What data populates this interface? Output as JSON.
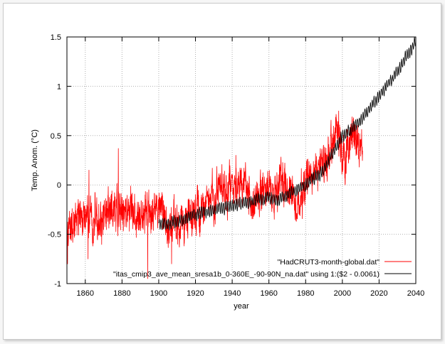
{
  "chart_data": {
    "type": "line",
    "title": "",
    "xlabel": "year",
    "ylabel": "Temp. Anom. (°C)",
    "xlim": [
      1850,
      2040
    ],
    "ylim": [
      -1,
      1.5
    ],
    "x_ticks": [
      1860,
      1880,
      1900,
      1920,
      1940,
      1960,
      1980,
      2000,
      2020,
      2040
    ],
    "y_ticks": [
      -1,
      -0.5,
      0,
      0.5,
      1,
      1.5
    ],
    "x_tick_labels": [
      "1860",
      "1880",
      "1900",
      "1920",
      "1940",
      "1960",
      "1980",
      "2000",
      "2020",
      "2040"
    ],
    "y_tick_labels": [
      "-1",
      "-0.5",
      "0",
      "0.5",
      "1",
      "1.5"
    ],
    "grid": true,
    "legend_position": "bottom-right",
    "series": [
      {
        "name": "\"HadCRUT3-month-global.dat\"",
        "color": "#ff0000",
        "resolution": "monthly",
        "x_range": [
          1850,
          2011
        ],
        "trend": {
          "x": [
            1850,
            1860,
            1870,
            1880,
            1890,
            1900,
            1905,
            1910,
            1920,
            1930,
            1940,
            1945,
            1950,
            1960,
            1970,
            1976,
            1980,
            1990,
            1998,
            2000,
            2005,
            2010
          ],
          "y": [
            -0.35,
            -0.35,
            -0.3,
            -0.25,
            -0.3,
            -0.22,
            -0.38,
            -0.42,
            -0.28,
            -0.14,
            0.03,
            0.0,
            -0.15,
            -0.05,
            -0.05,
            -0.2,
            0.05,
            0.2,
            0.52,
            0.25,
            0.45,
            0.4
          ]
        },
        "noise_amplitude": 0.28,
        "extremes": [
          {
            "x": 1850.3,
            "y": -0.8
          },
          {
            "x": 1861.5,
            "y": -0.75
          },
          {
            "x": 1862,
            "y": 0.15
          },
          {
            "x": 1878,
            "y": 0.37
          },
          {
            "x": 1894,
            "y": -0.95
          },
          {
            "x": 1907,
            "y": -0.8
          },
          {
            "x": 1942,
            "y": 0.3
          },
          {
            "x": 1998,
            "y": 0.75
          }
        ]
      },
      {
        "name": "\"itas_cmip3_ave_mean_sresa1b_0-360E_-90-90N_na.dat\" using 1:($2 - 0.0061)",
        "color": "#000000",
        "resolution": "monthly",
        "x_range": [
          1900,
          2040
        ],
        "trend": {
          "x": [
            1900,
            1910,
            1920,
            1930,
            1940,
            1945,
            1950,
            1960,
            1965,
            1970,
            1980,
            1990,
            2000,
            2010,
            2020,
            2030,
            2040
          ],
          "y": [
            -0.4,
            -0.38,
            -0.3,
            -0.25,
            -0.2,
            -0.18,
            -0.17,
            -0.12,
            -0.16,
            -0.1,
            0.0,
            0.15,
            0.5,
            0.65,
            0.9,
            1.15,
            1.45
          ]
        },
        "seasonal_amplitude": 0.05,
        "noise_amplitude": 0.03
      }
    ]
  }
}
